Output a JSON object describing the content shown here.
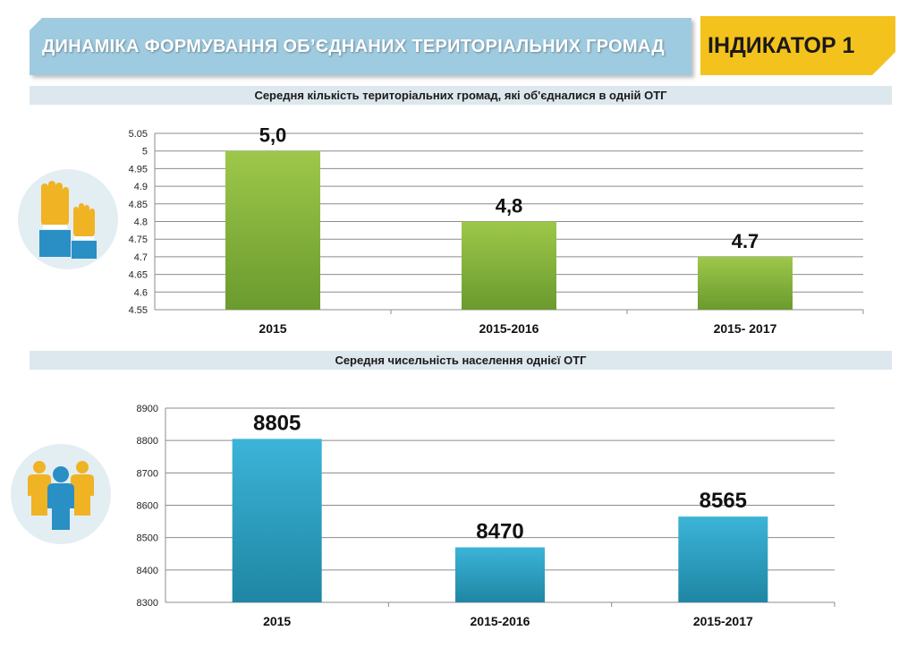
{
  "header": {
    "title": "ДИНАМІКА ФОРМУВАННЯ ОБ’ЄДНАНИХ ТЕРИТОРІАЛЬНИХ ГРОМАД",
    "badge": "ІНДИКАТОР 1"
  },
  "section1": {
    "title": "Середня кількість територіальних громад, які об'єдналися в одній ОТГ"
  },
  "section2": {
    "title": "Середня чисельність населення однієї ОТГ"
  },
  "icons": {
    "chart1": "raised-hands-icon",
    "chart2": "people-group-icon"
  },
  "colors": {
    "header_blue": "#9fcbe0",
    "badge_yellow": "#f4c21c",
    "bar_green_top": "#9dc84a",
    "bar_green_bottom": "#6b9a2e",
    "bar_blue_top": "#3cb4d8",
    "bar_blue_bottom": "#1f86a3"
  },
  "chart_data": [
    {
      "type": "bar",
      "categories": [
        "2015",
        "2015-2016",
        "2015- 2017"
      ],
      "values": [
        5.0,
        4.8,
        4.7
      ],
      "data_labels": [
        "5,0",
        "4,8",
        "4.7"
      ],
      "yticks": [
        "4.55",
        "4.6",
        "4.65",
        "4.7",
        "4.75",
        "4.8",
        "4.85",
        "4.9",
        "4.95",
        "5",
        "5.05"
      ],
      "ylim": [
        4.55,
        5.05
      ],
      "grid": true
    },
    {
      "type": "bar",
      "categories": [
        "2015",
        "2015-2016",
        "2015-2017"
      ],
      "values": [
        8805,
        8470,
        8565
      ],
      "data_labels": [
        "8805",
        "8470",
        "8565"
      ],
      "yticks": [
        "8300",
        "8400",
        "8500",
        "8600",
        "8700",
        "8800",
        "8900"
      ],
      "ylim": [
        8300,
        8900
      ],
      "grid": true
    }
  ]
}
